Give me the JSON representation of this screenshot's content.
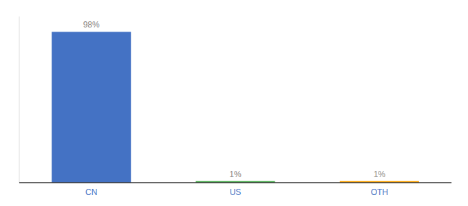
{
  "chart_data": {
    "type": "bar",
    "categories": [
      "CN",
      "US",
      "OTH"
    ],
    "values": [
      98,
      1,
      1
    ],
    "value_labels": [
      "98%",
      "1%",
      "1%"
    ],
    "colors": [
      "#4472c4",
      "#4caf50",
      "#ffa500"
    ],
    "data_labels": true,
    "ylim": [
      0,
      108
    ],
    "tick_labels": "x",
    "grid": false
  }
}
